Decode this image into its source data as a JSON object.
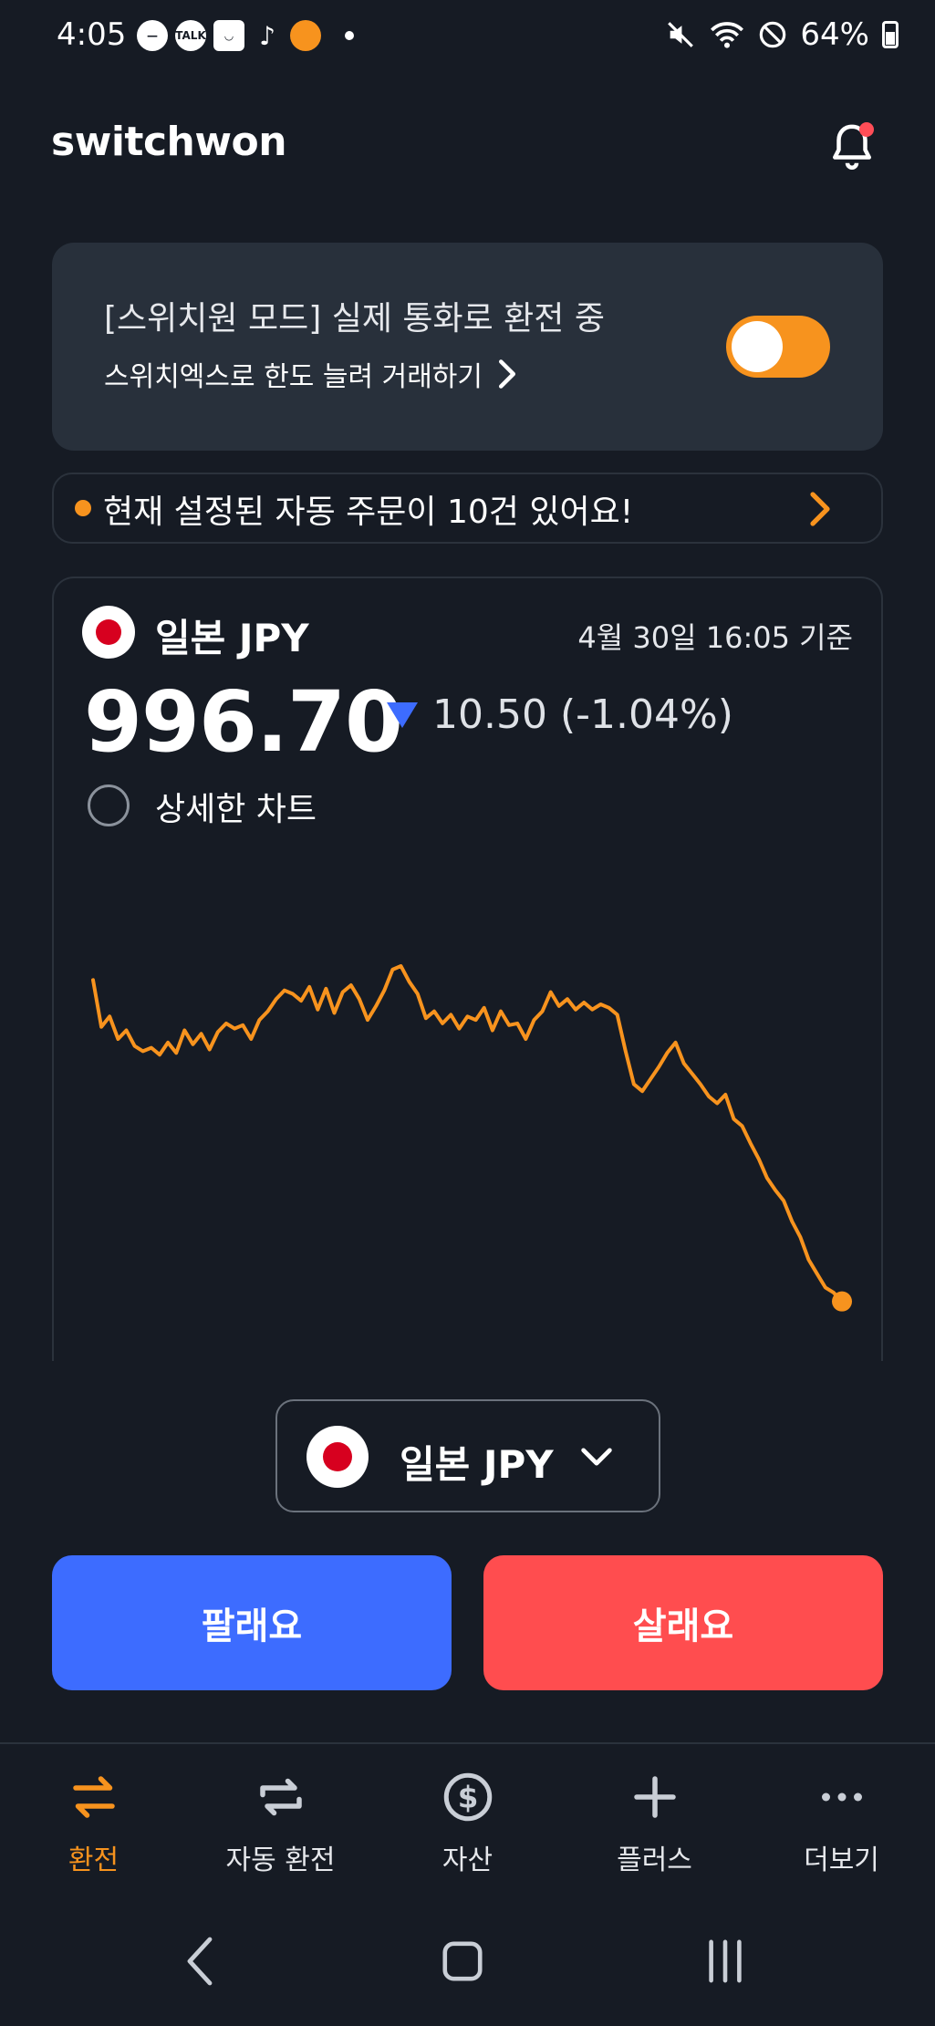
{
  "status_bar": {
    "time": "4:05",
    "battery": "64%",
    "left_icons": [
      "minus-circle-icon",
      "kakaotalk-icon",
      "shopping-bag-icon",
      "tiktok-icon",
      "avatar-icon"
    ],
    "talk_label": "TALK"
  },
  "header": {
    "title": "switchwon",
    "has_notification": true
  },
  "mode_card": {
    "title": "[스위치원 모드] 실제 통화로 환전 중",
    "subtitle": "스위치엑스로 한도 늘려 거래하기",
    "toggle_on": true
  },
  "banner": {
    "text": "현재 설정된 자동 주문이 10건 있어요!"
  },
  "currency": {
    "name": "일본 JPY",
    "timestamp": "4월 30일 16:05 기준",
    "rate": "996.70",
    "change": "10.50 (-1.04%)",
    "direction": "down",
    "detail_chart_label": "상세한 차트"
  },
  "chart_data": {
    "type": "line",
    "title": "",
    "xlabel": "",
    "ylabel": "",
    "values": [
      1015.2,
      1012.5,
      1013.1,
      1011.8,
      1012.3,
      1011.4,
      1011.1,
      1011.3,
      1010.9,
      1011.6,
      1011.0,
      1012.3,
      1011.5,
      1012.1,
      1011.2,
      1012.2,
      1012.7,
      1012.4,
      1012.6,
      1011.8,
      1012.9,
      1013.4,
      1014.1,
      1014.6,
      1014.4,
      1014.0,
      1014.8,
      1013.5,
      1014.7,
      1013.3,
      1014.5,
      1014.9,
      1014.1,
      1012.9,
      1013.7,
      1014.6,
      1015.8,
      1016.0,
      1015.1,
      1014.4,
      1013.0,
      1013.4,
      1012.7,
      1013.2,
      1012.4,
      1013.1,
      1012.9,
      1013.6,
      1012.3,
      1013.4,
      1012.6,
      1012.7,
      1011.8,
      1012.9,
      1013.4,
      1014.5,
      1013.7,
      1014.1,
      1013.5,
      1013.9,
      1013.5,
      1013.8,
      1013.6,
      1013.2,
      1011.1,
      1009.2,
      1008.8,
      1009.5,
      1010.2,
      1011.0,
      1011.6,
      1010.4,
      1009.8,
      1009.2,
      1008.5,
      1008.1,
      1008.6,
      1007.2,
      1006.8,
      1005.8,
      1004.9,
      1003.8,
      1003.1,
      1002.5,
      1001.3,
      1000.4,
      999.1,
      998.3,
      997.5,
      997.2,
      996.7
    ],
    "ylim": [
      996,
      1017
    ],
    "line_color": "#f7931e",
    "end_marker": true
  },
  "selector": {
    "label": "일본 JPY"
  },
  "actions": {
    "sell_label": "팔래요",
    "buy_label": "살래요",
    "sell_color": "#3d6cff",
    "buy_color": "#ff4d4f"
  },
  "tabs": [
    {
      "label": "환전",
      "icon": "exchange-arrows-icon",
      "active": true
    },
    {
      "label": "자동 환전",
      "icon": "repeat-icon",
      "active": false
    },
    {
      "label": "자산",
      "icon": "dollar-coin-icon",
      "active": false
    },
    {
      "label": "플러스",
      "icon": "plus-icon",
      "active": false
    },
    {
      "label": "더보기",
      "icon": "more-dots-icon",
      "active": false
    }
  ],
  "colors": {
    "background": "#161b24",
    "accent": "#f7931e",
    "card": "#28303b"
  }
}
